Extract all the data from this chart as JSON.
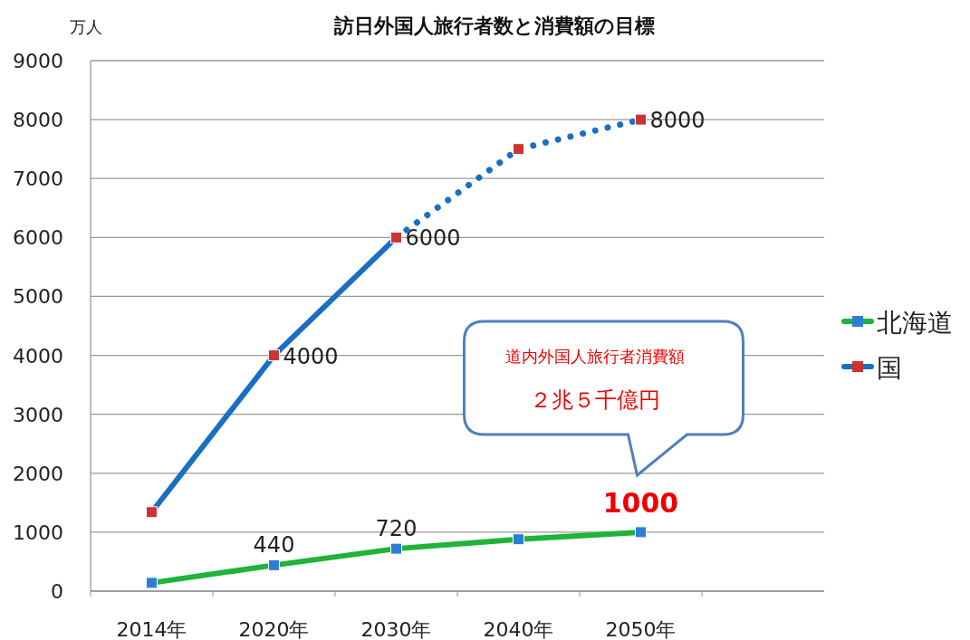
{
  "chart_data": {
    "type": "line",
    "title": "訪日外国人旅行者数と消費額の目標",
    "ylabel": "万人",
    "categories": [
      "2014年",
      "2020年",
      "2030年",
      "2040年",
      "2050年"
    ],
    "ylim": [
      0,
      9000
    ],
    "yticks": [
      0,
      1000,
      2000,
      3000,
      4000,
      5000,
      6000,
      7000,
      8000,
      9000
    ],
    "grid": "y",
    "legend": "right",
    "marker": "square",
    "series": [
      {
        "name": "北海道",
        "color": "#1fb33a",
        "values": [
          140,
          440,
          720,
          880,
          1000
        ],
        "value_labels": [
          null,
          "440",
          "720",
          null,
          null
        ]
      },
      {
        "name": "国",
        "color": "#1a6fc4",
        "values": [
          1340,
          4000,
          6000,
          null,
          null
        ],
        "value_labels": [
          null,
          "4000",
          "6000",
          null,
          null
        ],
        "line_style": "solid"
      },
      {
        "color": "#1a6fc4",
        "values": [
          null,
          null,
          6000,
          7500,
          8000
        ],
        "value_labels": [
          null,
          null,
          null,
          null,
          "8000"
        ],
        "line_style": "dotted"
      }
    ],
    "annotations": [
      "道内外国人旅行者消費額",
      "２兆５千億円",
      {
        "text": "1000",
        "x": "2050年",
        "y": 1000
      }
    ]
  }
}
